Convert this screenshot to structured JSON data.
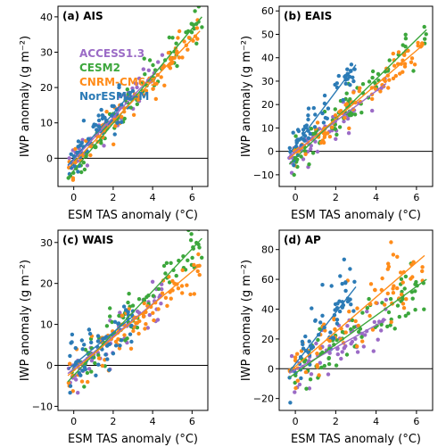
{
  "colors": {
    "ACCESS1.3": "#9b6bc6",
    "CESM2": "#3ca73c",
    "CNRM-CM6-1": "#ff8c1a",
    "NorESM1-M": "#2c7bb6"
  },
  "chart_data": [
    {
      "type": "scatter",
      "title": "(a) AIS",
      "xlabel": "ESM TAS anomaly (°C)",
      "ylabel": "IWP anomaly (g m⁻²)",
      "xlim": [
        -0.8,
        6.8
      ],
      "ylim": [
        -8,
        43
      ],
      "xticks": [
        "0",
        "2",
        "4",
        "6"
      ],
      "yticks": [
        "0",
        "10",
        "20",
        "30",
        "40"
      ],
      "ytick_values": [
        0,
        10,
        20,
        30,
        40
      ],
      "zero_line": true,
      "legend": [
        "ACCESS1.3",
        "CESM2",
        "CNRM-CM6-1",
        "NorESM1-M"
      ],
      "series": [
        {
          "name": "ACCESS1.3",
          "xmax": 4.5,
          "slope": 6.0,
          "noise": 2.5,
          "n": 60,
          "fit": [
            [
              -0.3,
              -2.2
            ],
            [
              4.5,
              26.5
            ]
          ]
        },
        {
          "name": "CESM2",
          "xmax": 6.5,
          "slope": 6.4,
          "noise": 2.6,
          "n": 80,
          "fit": [
            [
              -0.3,
              -5.5
            ],
            [
              6.5,
              40.0
            ]
          ]
        },
        {
          "name": "CNRM-CM6-1",
          "xmax": 6.4,
          "slope": 5.3,
          "noise": 2.6,
          "n": 80,
          "fit": [
            [
              -0.3,
              -3.0
            ],
            [
              6.4,
              36.0
            ]
          ]
        },
        {
          "name": "NorESM1-M",
          "xmax": 3.0,
          "slope": 6.0,
          "noise": 2.8,
          "n": 60,
          "fit": [
            [
              -0.3,
              -2.0
            ],
            [
              3.0,
              19.0
            ]
          ]
        }
      ]
    },
    {
      "type": "scatter",
      "title": "(b) EAIS",
      "xlabel": "ESM TAS anomaly (°C)",
      "ylabel": "IWP anomaly (g m⁻²)",
      "xlim": [
        -0.8,
        6.8
      ],
      "ylim": [
        -15,
        62
      ],
      "xticks": [
        "0",
        "2",
        "4",
        "6"
      ],
      "yticks": [
        "−10",
        "0",
        "10",
        "20",
        "30",
        "40",
        "50",
        "60"
      ],
      "ytick_values": [
        -10,
        0,
        10,
        20,
        30,
        40,
        50,
        60
      ],
      "zero_line": true,
      "series": [
        {
          "name": "ACCESS1.3",
          "xmax": 4.5,
          "slope": 6.6,
          "noise": 3.5,
          "n": 60,
          "fit": [
            [
              -0.3,
              -2.0
            ],
            [
              4.5,
              29.0
            ]
          ]
        },
        {
          "name": "CESM2",
          "xmax": 6.5,
          "slope": 8.2,
          "noise": 4.0,
          "n": 80,
          "fit": [
            [
              -0.3,
              -5.5
            ],
            [
              6.5,
              52.0
            ]
          ]
        },
        {
          "name": "CNRM-CM6-1",
          "xmax": 6.4,
          "slope": 7.0,
          "noise": 3.8,
          "n": 80,
          "fit": [
            [
              -0.3,
              -3.0
            ],
            [
              6.4,
              46.0
            ]
          ]
        },
        {
          "name": "NorESM1-M",
          "xmax": 3.0,
          "slope": 11.0,
          "noise": 4.0,
          "n": 60,
          "fit": [
            [
              -0.3,
              -1.0
            ],
            [
              3.0,
              37.0
            ]
          ]
        }
      ]
    },
    {
      "type": "scatter",
      "title": "(c) WAIS",
      "xlabel": "ESM TAS anomaly (°C)",
      "ylabel": "IWP anomaly (g m⁻²)",
      "xlim": [
        -0.8,
        6.8
      ],
      "ylim": [
        -11,
        33
      ],
      "xticks": [
        "0",
        "2",
        "4",
        "6"
      ],
      "yticks": [
        "−10",
        "0",
        "10",
        "20",
        "30"
      ],
      "ytick_values": [
        -10,
        0,
        10,
        20,
        30
      ],
      "zero_line": true,
      "series": [
        {
          "name": "ACCESS1.3",
          "xmax": 4.5,
          "slope": 4.2,
          "noise": 2.8,
          "n": 60,
          "fit": [
            [
              -0.3,
              -2.0
            ],
            [
              4.5,
              17.0
            ]
          ]
        },
        {
          "name": "CESM2",
          "xmax": 6.5,
          "slope": 5.0,
          "noise": 3.0,
          "n": 80,
          "fit": [
            [
              -0.3,
              -4.0
            ],
            [
              6.5,
              31.0
            ]
          ]
        },
        {
          "name": "CNRM-CM6-1",
          "xmax": 6.4,
          "slope": 4.0,
          "noise": 2.8,
          "n": 80,
          "fit": [
            [
              -0.3,
              -2.5
            ],
            [
              6.4,
              24.5
            ]
          ]
        },
        {
          "name": "NorESM1-M",
          "xmax": 3.0,
          "slope": 4.0,
          "noise": 3.5,
          "n": 60,
          "fit": [
            [
              -0.3,
              -1.0
            ],
            [
              3.0,
              12.0
            ]
          ]
        }
      ]
    },
    {
      "type": "scatter",
      "title": "(d) AP",
      "xlabel": "ESM TAS anomaly (°C)",
      "ylabel": "IWP anomaly (g m⁻²)",
      "xlim": [
        -0.8,
        6.8
      ],
      "ylim": [
        -28,
        93
      ],
      "xticks": [
        "0",
        "2",
        "4",
        "6"
      ],
      "yticks": [
        "−20",
        "0",
        "20",
        "40",
        "60",
        "80"
      ],
      "ytick_values": [
        -20,
        0,
        20,
        40,
        60,
        80
      ],
      "zero_line": true,
      "series": [
        {
          "name": "ACCESS1.3",
          "xmax": 4.5,
          "slope": 8.0,
          "noise": 10.0,
          "n": 60,
          "fit": [
            [
              -0.3,
              -3.0
            ],
            [
              4.5,
              33.0
            ]
          ]
        },
        {
          "name": "CESM2",
          "xmax": 6.5,
          "slope": 9.0,
          "noise": 9.0,
          "n": 80,
          "fit": [
            [
              -0.3,
              -6.0
            ],
            [
              6.5,
              60.0
            ]
          ]
        },
        {
          "name": "CNRM-CM6-1",
          "xmax": 6.4,
          "slope": 12.0,
          "noise": 12.0,
          "n": 80,
          "fit": [
            [
              -0.3,
              -2.0
            ],
            [
              6.4,
              76.0
            ]
          ]
        },
        {
          "name": "NorESM1-M",
          "xmax": 3.0,
          "slope": 18.0,
          "noise": 10.0,
          "n": 60,
          "fit": [
            [
              -0.3,
              -2.0
            ],
            [
              3.0,
              55.0
            ]
          ]
        }
      ]
    }
  ]
}
